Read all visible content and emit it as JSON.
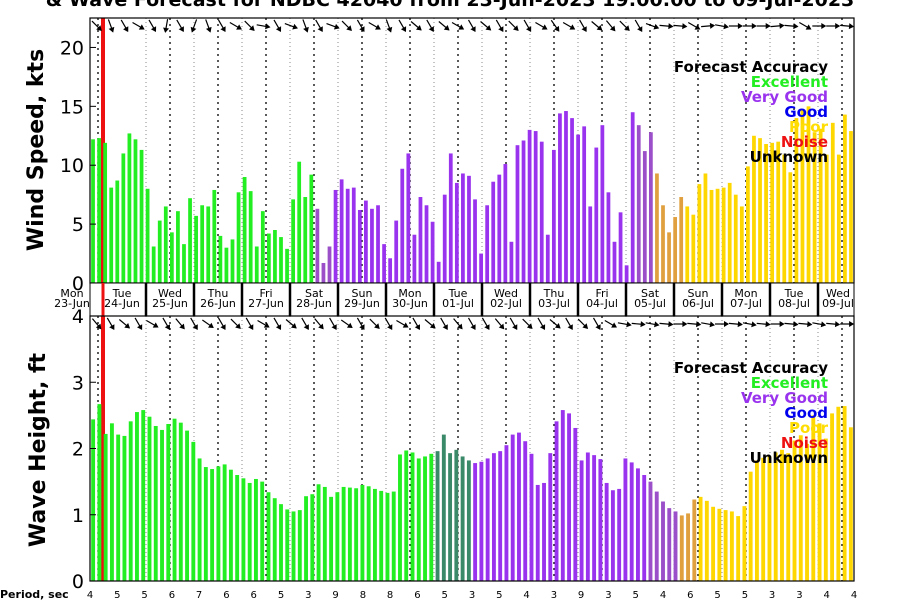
{
  "title": "& Wave Forecast for NDBC 42040 from 23-Jun-2023 19:00:00 to 09-Jul-2023",
  "period_label": "Period, sec",
  "period_values": [
    4,
    5,
    5,
    6,
    7,
    6,
    6,
    5,
    3,
    9,
    8,
    8,
    6,
    5,
    3,
    5,
    4,
    3,
    9,
    3,
    5,
    4,
    6,
    5,
    5,
    3,
    3,
    4,
    4
  ],
  "legend": {
    "title": "Forecast Accuracy",
    "items": [
      {
        "label": "Excellent",
        "color": "#22ee22"
      },
      {
        "label": "Very Good",
        "color": "#9933ee"
      },
      {
        "label": "Good",
        "color": "#0000ee"
      },
      {
        "label": "Poor",
        "color": "#ffdd00"
      },
      {
        "label": "Noise",
        "color": "#ee1111"
      },
      {
        "label": "Unknown",
        "color": "#000000"
      }
    ]
  },
  "days": [
    {
      "dow": "Mon",
      "date": "23-Jun"
    },
    {
      "dow": "Tue",
      "date": "24-Jun"
    },
    {
      "dow": "Wed",
      "date": "25-Jun"
    },
    {
      "dow": "Thu",
      "date": "26-Jun"
    },
    {
      "dow": "Fri",
      "date": "27-Jun"
    },
    {
      "dow": "Sat",
      "date": "28-Jun"
    },
    {
      "dow": "Sun",
      "date": "29-Jun"
    },
    {
      "dow": "Mon",
      "date": "30-Jun"
    },
    {
      "dow": "Tue",
      "date": "01-Jul"
    },
    {
      "dow": "Wed",
      "date": "02-Jul"
    },
    {
      "dow": "Thu",
      "date": "03-Jul"
    },
    {
      "dow": "Fri",
      "date": "04-Jul"
    },
    {
      "dow": "Sat",
      "date": "05-Jul"
    },
    {
      "dow": "Sun",
      "date": "06-Jul"
    },
    {
      "dow": "Mon",
      "date": "07-Jul"
    },
    {
      "dow": "Tue",
      "date": "08-Jul"
    },
    {
      "dow": "Wed",
      "date": "09-Jul"
    }
  ],
  "chart_data": [
    {
      "type": "bar",
      "ylabel": "Wind Speed, kts",
      "ylim": [
        0,
        22.5
      ],
      "yticks": [
        0,
        5,
        10,
        15,
        20
      ],
      "values": [
        12.2,
        12.3,
        11.9,
        8.1,
        8.7,
        11.0,
        12.7,
        12.2,
        11.3,
        8.0,
        3.1,
        5.3,
        6.5,
        4.3,
        6.1,
        3.3,
        7.2,
        5.7,
        6.6,
        6.5,
        7.9,
        4.0,
        3.0,
        3.7,
        7.7,
        9.0,
        7.8,
        3.1,
        6.1,
        4.2,
        4.5,
        3.9,
        2.9,
        7.1,
        10.3,
        7.3,
        9.2,
        6.3,
        1.7,
        3.1,
        7.9,
        8.8,
        8.0,
        8.1,
        6.2,
        7.0,
        6.3,
        6.6,
        3.3,
        2.1,
        5.3,
        9.7,
        11.0,
        4.1,
        7.3,
        6.6,
        5.2,
        1.8,
        7.5,
        11.0,
        8.5,
        9.3,
        9.1,
        7.1,
        2.5,
        6.6,
        8.6,
        9.2,
        10.1,
        3.5,
        11.7,
        12.1,
        13.0,
        12.9,
        12.0,
        4.1,
        11.3,
        14.4,
        14.6,
        14.0,
        12.6,
        13.3,
        6.5,
        11.5,
        13.4,
        7.7,
        3.5,
        6.0,
        1.5,
        14.5,
        13.4,
        11.2,
        12.8,
        9.3,
        6.6,
        4.3,
        5.6,
        7.3,
        6.5,
        5.8,
        8.4,
        9.3,
        7.9,
        8.0,
        8.1,
        8.5,
        7.5,
        6.5,
        9.9,
        12.5,
        12.3,
        11.8,
        11.9,
        12.0,
        10.9,
        9.4,
        14.0,
        14.7,
        15.0,
        12.8,
        13.1,
        10.9,
        13.6,
        10.9,
        14.3,
        12.9
      ],
      "colors": "GGGGGGGGGGGGGGGGGGGGGGGGGGGGGGGGGGGGGMMMVVVVVVVVVVVVVVVVVVVVVVVVVVVVVVVVVVVVVVVVVVVVVVVVVVMMMOOOOOYYYYYYYYYYYYYYYYYYYYYYYYYYYYYYYYYYYYYYYYYYYYY"
    },
    {
      "type": "bar",
      "ylabel": "Wave Height, ft",
      "ylim": [
        0,
        4
      ],
      "yticks": [
        0,
        1,
        2,
        3,
        4
      ],
      "values": [
        2.44,
        2.67,
        2.22,
        2.38,
        2.21,
        2.19,
        2.41,
        2.55,
        2.58,
        2.48,
        2.34,
        2.28,
        2.37,
        2.45,
        2.39,
        2.27,
        2.1,
        1.85,
        1.72,
        1.69,
        1.73,
        1.76,
        1.68,
        1.6,
        1.55,
        1.48,
        1.54,
        1.5,
        1.34,
        1.25,
        1.16,
        1.08,
        1.05,
        1.07,
        1.28,
        1.31,
        1.46,
        1.42,
        1.27,
        1.34,
        1.42,
        1.41,
        1.4,
        1.45,
        1.43,
        1.39,
        1.36,
        1.33,
        1.35,
        1.91,
        1.97,
        1.94,
        1.85,
        1.88,
        1.92,
        1.96,
        2.21,
        1.93,
        1.98,
        1.88,
        1.82,
        1.78,
        1.8,
        1.85,
        1.93,
        1.96,
        2.05,
        2.21,
        2.24,
        2.11,
        1.92,
        1.45,
        1.48,
        1.93,
        2.41,
        2.58,
        2.53,
        2.31,
        1.82,
        1.94,
        1.9,
        1.84,
        1.48,
        1.37,
        1.39,
        1.85,
        1.79,
        1.7,
        1.6,
        1.5,
        1.35,
        1.2,
        1.1,
        1.05,
        0.99,
        1.02,
        1.23,
        1.27,
        1.21,
        1.12,
        1.09,
        1.07,
        1.05,
        0.98,
        1.13,
        1.65,
        1.82,
        1.86,
        1.88,
        1.94,
        1.98,
        1.93,
        2.12,
        2.2,
        2.07,
        2.5,
        2.38,
        2.15,
        2.53,
        2.63,
        2.64,
        2.32
      ],
      "colors": "GGGGGGGGGGGGGGGGGGGGGGGGGGGGGGGGGGGGGGGGGGGGGGGGGGGGGGGTTTTTTVVVVVVVVVVVVVVVVVVVVVVVVVVVVMMMMMOOOYYYYYYYYYYYYYYYYYYYYYYYYYYYYYYYYYYYYYYYYYYYYYYYY"
    }
  ],
  "arrow_dirs_top": [
    135,
    160,
    150,
    120,
    150,
    190,
    150,
    200,
    160,
    150,
    120,
    135,
    100,
    150,
    110,
    160,
    150,
    110,
    135,
    150,
    120,
    160,
    150,
    130,
    150,
    130,
    120,
    150,
    130,
    150,
    135,
    150,
    120,
    145,
    120,
    150,
    130,
    140,
    135,
    150,
    110,
    95,
    95,
    120,
    85,
    100,
    90,
    90,
    90,
    85,
    95,
    120,
    90,
    90,
    95
  ],
  "arrow_dirs_bottom": [
    140,
    150,
    130,
    150,
    120,
    150,
    140,
    150,
    125,
    150,
    135,
    150,
    120,
    150,
    130,
    150,
    140,
    150,
    125,
    150,
    135,
    150,
    120,
    150,
    130,
    150,
    140,
    150,
    150,
    140,
    150,
    135,
    150,
    130,
    150,
    135,
    150,
    120,
    100,
    95,
    100,
    95,
    90,
    95,
    100,
    90,
    95,
    100,
    95,
    90,
    95,
    95,
    100,
    95,
    90
  ]
}
